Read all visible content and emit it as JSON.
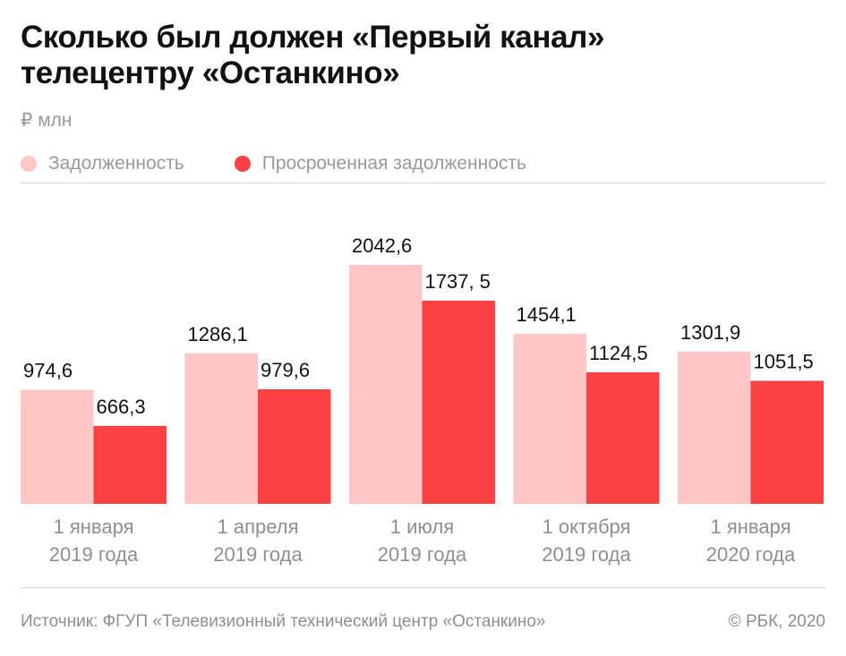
{
  "chart_data": {
    "type": "bar",
    "title": "Сколько был должен «Первый канал» телецентру «Останкино»",
    "title_lines": [
      "Сколько был должен «Первый канал»",
      "телецентру «Останкино»"
    ],
    "unit": "₽ млн",
    "categories": [
      [
        "1 января",
        "2019 года"
      ],
      [
        "1 апреля",
        "2019 года"
      ],
      [
        "1 июля",
        "2019 года"
      ],
      [
        "1 октября",
        "2019 года"
      ],
      [
        "1 января",
        "2020 года"
      ]
    ],
    "series": [
      {
        "name": "Задолженность",
        "color": "#ffc6c6",
        "values": [
          974.6,
          1286.1,
          2042.6,
          1454.1,
          1301.9
        ],
        "labels": [
          "974,6",
          "1286,1",
          "2042,6",
          "1454,1",
          "1301,9"
        ]
      },
      {
        "name": "Просроченная задолженность",
        "color": "#fb4143",
        "values": [
          666.3,
          979.6,
          1737.5,
          1124.5,
          1051.5
        ],
        "labels": [
          "666,3",
          "979,6",
          "1737, 5",
          "1124,5",
          "1051,5"
        ]
      }
    ],
    "ylim": [
      0,
      2100
    ],
    "grid": false,
    "legend_position": "top-left",
    "xlabel": "",
    "ylabel": ""
  },
  "footer": {
    "source": "Источник: ФГУП «Телевизионный технический центр «Останкино»",
    "copyright": "© РБК, 2020"
  },
  "colors": {
    "title": "#111111",
    "muted": "#9a9a9a",
    "label": "#111111",
    "category_label": "#8f8f8f",
    "divider": "#d6d6d6",
    "background": "#ffffff"
  }
}
